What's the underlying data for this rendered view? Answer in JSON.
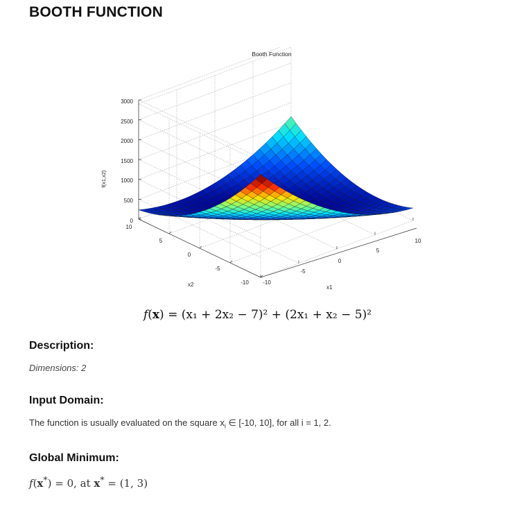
{
  "page": {
    "title": "BOOTH FUNCTION"
  },
  "figure": {
    "title": "Booth Function",
    "zlabel": "f(x1,x2)",
    "xlabel": "x1",
    "ylabel": "x2",
    "z_ticks": [
      "3000",
      "2500",
      "2000",
      "1500",
      "1000",
      "500",
      "0"
    ],
    "x2_ticks": [
      "10",
      "5",
      "0",
      "-5",
      "-10"
    ],
    "x1_ticks": [
      "-10",
      "-5",
      "0",
      "5",
      "10"
    ],
    "colormap": [
      "#00008f",
      "#0050ff",
      "#00dfff",
      "#7fff7f",
      "#ffdf00",
      "#ff3000",
      "#800000"
    ]
  },
  "formula": {
    "lhs_f": "f",
    "lhs_x": "x",
    "rhs": "= (x₁ + 2x₂ − 7)² + (2x₁ + x₂ − 5)²"
  },
  "description": {
    "heading": "Description:",
    "dimensions": "Dimensions: 2"
  },
  "input_domain": {
    "heading": "Input Domain:",
    "text_before": "The function is usually evaluated on the square x",
    "subscript": "i",
    "text_after": " ∈ [-10, 10], for all i = 1, 2."
  },
  "global_minimum": {
    "heading": "Global Minimum:",
    "f": "f",
    "x_star": "x",
    "star": "*",
    "value": ") = 0,",
    "at": " at ",
    "x_star2": "x",
    "star2": "*",
    "point": " = (1, 3)"
  }
}
